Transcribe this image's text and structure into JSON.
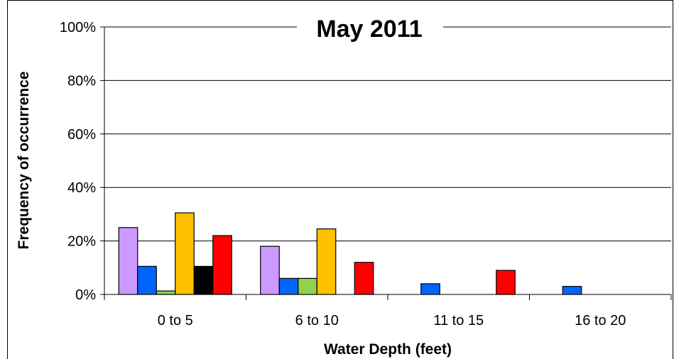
{
  "chart_data": {
    "type": "bar",
    "title": "May 2011",
    "x_label": "Water Depth (feet)",
    "y_label": "Frequency of occurrence",
    "categories": [
      "0 to 5",
      "6 to 10",
      "11 to 15",
      "16 to 20"
    ],
    "series": [
      {
        "color": "#cc99ff",
        "values": [
          25,
          18,
          0,
          0
        ]
      },
      {
        "color": "#0066ff",
        "values": [
          10.5,
          6,
          4,
          3
        ]
      },
      {
        "color": "#92d050",
        "values": [
          1.3,
          6,
          0,
          0
        ]
      },
      {
        "color": "#ffc000",
        "values": [
          30.5,
          24.5,
          0,
          0
        ]
      },
      {
        "color": "#000000",
        "values": [
          10.5,
          0,
          0,
          0
        ]
      },
      {
        "color": "#ff0000",
        "values": [
          22,
          12,
          9,
          0
        ]
      }
    ],
    "ylim": [
      0,
      100
    ],
    "yticks": [
      {
        "value": 0,
        "label": "0%"
      },
      {
        "value": 20,
        "label": "20%"
      },
      {
        "value": 40,
        "label": "40%"
      },
      {
        "value": 60,
        "label": "60%"
      },
      {
        "value": 80,
        "label": "80%"
      },
      {
        "value": 100,
        "label": "100%"
      }
    ],
    "grid": true
  }
}
